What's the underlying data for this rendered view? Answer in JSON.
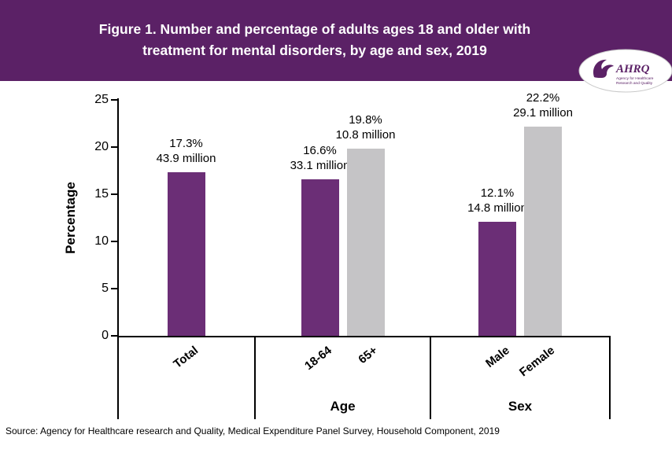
{
  "header": {
    "title": "Figure 1. Number and percentage of adults ages 18 and older with treatment for mental disorders, by age and sex, 2019",
    "title_lines": [
      "Figure 1. Number and percentage of adults ages 18 and older with",
      "treatment for mental disorders, by age and sex, 2019"
    ]
  },
  "logo": {
    "name": "AHRQ",
    "tagline_line1": "Agency for Healthcare",
    "tagline_line2": "Research and Quality"
  },
  "colors": {
    "header_purple": "#5b2166",
    "bar_purple": "#6b2e76",
    "bar_gray": "#c5c4c6",
    "axis": "#000000"
  },
  "source": "Source: Agency for Healthcare research and Quality, Medical Expenditure Panel Survey, Household Component, 2019",
  "chart_data": {
    "type": "bar",
    "title": "Figure 1. Number and percentage of adults ages 18 and older with treatment for mental disorders, by age and sex, 2019",
    "xlabel": "",
    "ylabel": "Percentage",
    "ylim": [
      0,
      25
    ],
    "yticks": [
      "0",
      "5",
      "10",
      "15",
      "20",
      "25"
    ],
    "grid": false,
    "legend": "none",
    "groups": [
      {
        "label": "",
        "bars": [
          {
            "category": "Total",
            "value": 17.3,
            "value_label": "17.3%",
            "count_label": "43.9 million",
            "color": "purple"
          }
        ]
      },
      {
        "label": "Age",
        "bars": [
          {
            "category": "18-64",
            "value": 16.6,
            "value_label": "16.6%",
            "count_label": "33.1 million",
            "color": "purple"
          },
          {
            "category": "65+",
            "value": 19.8,
            "value_label": "19.8%",
            "count_label": "10.8 million",
            "color": "gray"
          }
        ]
      },
      {
        "label": "Sex",
        "bars": [
          {
            "category": "Male",
            "value": 12.1,
            "value_label": "12.1%",
            "count_label": "14.8 million",
            "color": "purple"
          },
          {
            "category": "Female",
            "value": 22.2,
            "value_label": "22.2%",
            "count_label": "29.1 million",
            "color": "gray"
          }
        ]
      }
    ]
  }
}
